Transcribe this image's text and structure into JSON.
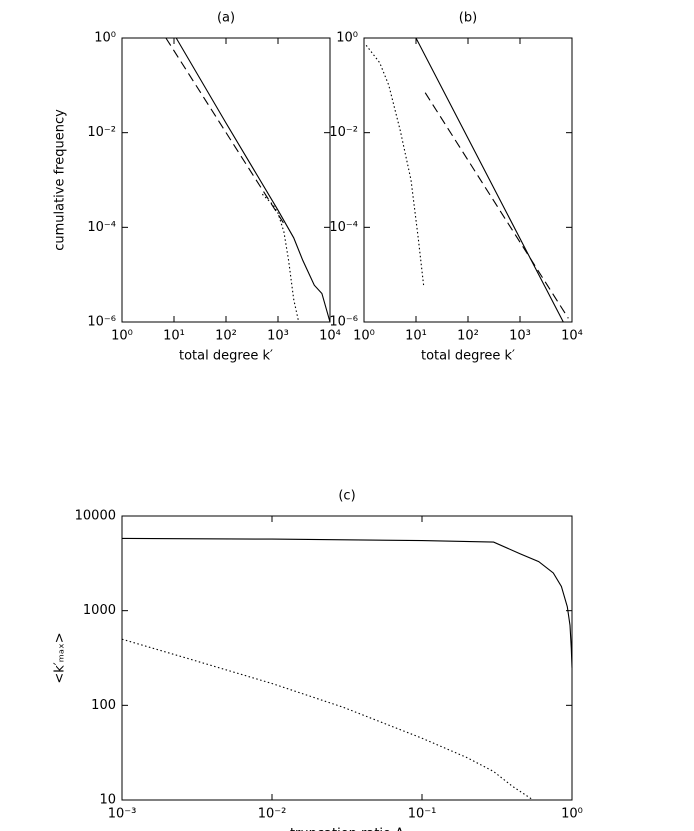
{
  "chart_data": [
    {
      "type": "line",
      "title": "(a)",
      "xlabel": "total degree k′",
      "ylabel": "cumulative frequency",
      "xscale": "log",
      "yscale": "log",
      "xlim": [
        1,
        10000
      ],
      "ylim": [
        1e-06,
        1
      ],
      "xticks": [
        {
          "value": 1,
          "label": "10⁰"
        },
        {
          "value": 10,
          "label": "10¹"
        },
        {
          "value": 100,
          "label": "10²"
        },
        {
          "value": 1000,
          "label": "10³"
        },
        {
          "value": 10000,
          "label": "10⁴"
        }
      ],
      "yticks": [
        {
          "value": 1e-06,
          "label": "10⁻⁶"
        },
        {
          "value": 0.0001,
          "label": "10⁻⁴"
        },
        {
          "value": 0.01,
          "label": "10⁻²"
        },
        {
          "value": 1,
          "label": "10⁰"
        }
      ],
      "series": [
        {
          "color": "#000000",
          "dash": "solid",
          "x": [
            1,
            11,
            100,
            1000,
            2000,
            3000,
            5000,
            7000,
            10000
          ],
          "values": [
            1,
            1,
            0.016,
            0.00023,
            6e-05,
            2e-05,
            6e-06,
            4e-06,
            1e-06
          ]
        },
        {
          "color": "#000000",
          "dash": "dashed",
          "x": [
            7,
            1300
          ],
          "values": [
            1,
            0.00012
          ]
        },
        {
          "color": "#000000",
          "dash": "dotted",
          "x": [
            500,
            800,
            1000,
            1300,
            1600,
            2000,
            2500
          ],
          "values": [
            0.0005,
            0.0003,
            0.0002,
            8e-05,
            2e-05,
            3e-06,
            1e-06
          ]
        }
      ]
    },
    {
      "type": "line",
      "title": "(b)",
      "xlabel": "total degree k′",
      "xscale": "log",
      "yscale": "log",
      "xlim": [
        1,
        10000
      ],
      "ylim": [
        1e-06,
        1
      ],
      "xticks": [
        {
          "value": 1,
          "label": "10⁰"
        },
        {
          "value": 10,
          "label": "10¹"
        },
        {
          "value": 100,
          "label": "10²"
        },
        {
          "value": 1000,
          "label": "10³"
        },
        {
          "value": 10000,
          "label": "10⁴"
        }
      ],
      "yticks": [
        {
          "value": 1e-06,
          "label": "10⁻⁶"
        },
        {
          "value": 0.0001,
          "label": "10⁻⁴"
        },
        {
          "value": 0.01,
          "label": "10⁻²"
        },
        {
          "value": 1,
          "label": "10⁰"
        }
      ],
      "series": [
        {
          "color": "#000000",
          "dash": "solid",
          "x": [
            1,
            10,
            6800
          ],
          "values": [
            1,
            1,
            1e-06
          ]
        },
        {
          "color": "#000000",
          "dash": "dashed",
          "x": [
            15,
            8500
          ],
          "values": [
            0.07,
            1.2e-06
          ]
        },
        {
          "color": "#000000",
          "dash": "dotted",
          "x": [
            1.1,
            2,
            3,
            5,
            8,
            11,
            14
          ],
          "values": [
            0.7,
            0.3,
            0.1,
            0.011,
            0.001,
            6e-05,
            6e-06
          ]
        }
      ]
    },
    {
      "type": "line",
      "title": "(c)",
      "xlabel": "truncation ratio Δ",
      "ylabel": "<k′ₘₐₓ>",
      "xscale": "log",
      "yscale": "log",
      "xlim": [
        0.001,
        1
      ],
      "ylim": [
        10,
        10000
      ],
      "xticks": [
        {
          "value": 0.001,
          "label": "10⁻³"
        },
        {
          "value": 0.01,
          "label": "10⁻²"
        },
        {
          "value": 0.1,
          "label": "10⁻¹"
        },
        {
          "value": 1,
          "label": "10⁰"
        }
      ],
      "yticks": [
        10,
        100,
        1000,
        10000
      ],
      "series": [
        {
          "color": "#000000",
          "dash": "solid",
          "x": [
            0.001,
            0.01,
            0.1,
            0.3,
            0.45,
            0.6,
            0.75,
            0.85,
            0.93,
            0.97,
            0.99,
            1.0
          ],
          "values": [
            5800,
            5700,
            5500,
            5300,
            4000,
            3300,
            2500,
            1800,
            1100,
            700,
            400,
            250
          ]
        },
        {
          "color": "#000000",
          "dash": "dotted",
          "x": [
            0.001,
            0.003,
            0.01,
            0.03,
            0.1,
            0.2,
            0.3,
            0.4,
            0.55
          ],
          "values": [
            500,
            300,
            170,
            95,
            45,
            28,
            20,
            14,
            10
          ]
        }
      ]
    }
  ]
}
